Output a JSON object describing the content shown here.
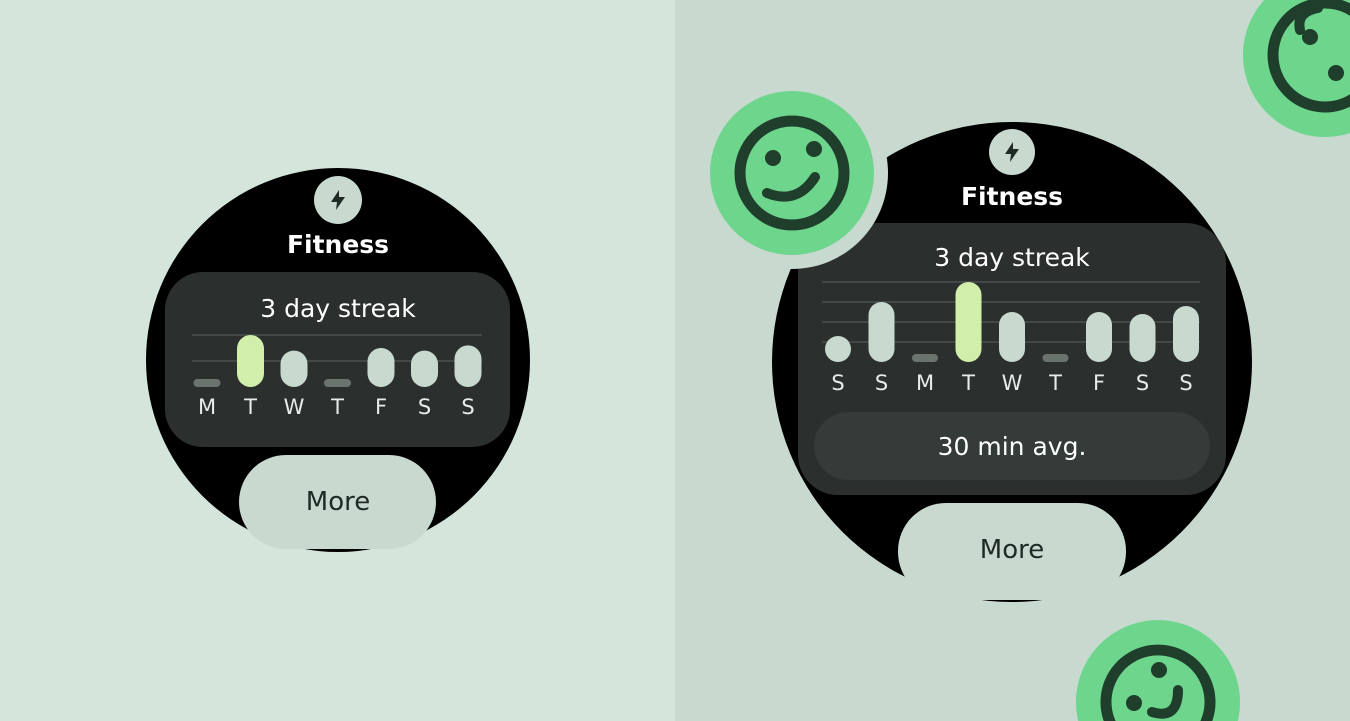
{
  "colors": {
    "left_background": "#d4e5db",
    "right_background": "#c8d9cf",
    "watch_face": "#000000",
    "card": "#2b302e",
    "avg_pill": "#353b39",
    "bar": "#c8d9cf",
    "bar_highlight": "#d1eeaa",
    "bar_zero": "#6b736f",
    "button": "#c8d9cf",
    "button_text": "#1e2b25",
    "smiley_fill": "#6dd58c",
    "smiley_stroke": "#1f3f2c"
  },
  "small_watch": {
    "icon": "lightning-bolt-icon",
    "title": "Fitness",
    "card_title": "3 day streak",
    "button_label": "More"
  },
  "large_watch": {
    "icon": "lightning-bolt-icon",
    "title": "Fitness",
    "card_title": "3 day streak",
    "average": "30 min avg.",
    "button_label": "More"
  },
  "decorations": [
    "smiley-face-icon",
    "smiley-face-icon",
    "smiley-face-icon"
  ],
  "chart_data": [
    {
      "type": "bar",
      "categories": [
        "M",
        "T",
        "W",
        "T",
        "F",
        "S",
        "S"
      ],
      "values": [
        0,
        2,
        1.4,
        0,
        1.5,
        1.4,
        1.6
      ],
      "highlight_index": 1,
      "ylim": [
        0,
        2
      ],
      "grid": true
    },
    {
      "type": "bar",
      "categories": [
        "S",
        "S",
        "M",
        "T",
        "W",
        "T",
        "F",
        "S",
        "S"
      ],
      "values": [
        1.1,
        3,
        0,
        4,
        2.5,
        0,
        2.5,
        2.4,
        2.8
      ],
      "highlight_index": 3,
      "ylim": [
        0,
        4
      ],
      "grid": true
    }
  ]
}
